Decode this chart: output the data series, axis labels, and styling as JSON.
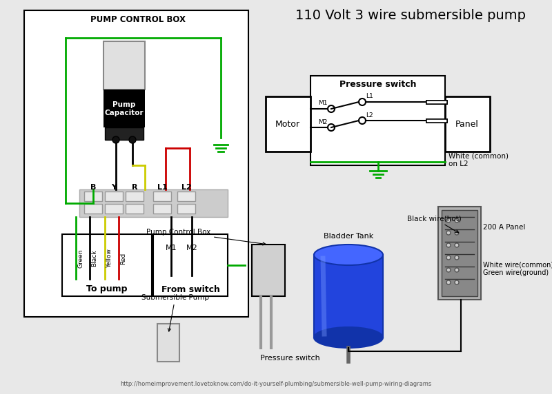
{
  "title": "110 Volt 3 wire submersible pump",
  "bg_color": "#e8e8e8",
  "pump_control_box_label": "PUMP CONTROL BOX",
  "pressure_switch_label": "Pressure switch",
  "motor_label": "Motor",
  "panel_label": "Panel",
  "to_pump_label": "To pump",
  "from_switch_label": "From switch",
  "pump_capacitor_label": "Pump\nCapacitor",
  "terminal_labels": [
    "B",
    "Y",
    "R",
    "L1",
    "L2"
  ],
  "wire_labels_pump": [
    "Green",
    "Black",
    "Yellow",
    "Red"
  ],
  "wire_labels_switch": [
    "M1",
    "M2"
  ],
  "bladder_tank_label": "Bladder Tank",
  "pump_control_box_label2": "Pump Control Box",
  "submersible_pump_label": "Submersible Pump",
  "pressure_switch_label2": "Pressure switch",
  "panel_200a_label": "200 A Panel",
  "black_wire_label": "Black wire(hot)",
  "white_wire_label": "White wire(common)\nGreen wire(ground)",
  "white_common_label": "White (common)\non L2",
  "url": "http://homeimprovement.lovetoknow.com/do-it-yourself-plumbing/submersible-well-pump-wiring-diagrams",
  "green_color": "#00aa00",
  "yellow_color": "#cccc00",
  "red_color": "#cc0000",
  "blue_tank": "#2244dd",
  "blue_tank_dark": "#1133aa",
  "blue_tank_light": "#4466ff"
}
